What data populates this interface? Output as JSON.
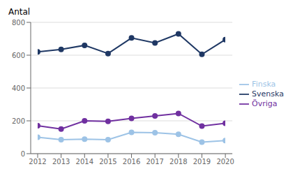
{
  "chart_data": {
    "type": "line",
    "title": "Antal",
    "x": [
      2012,
      2013,
      2014,
      2015,
      2016,
      2017,
      2018,
      2019,
      2020
    ],
    "xlim": [
      2012,
      2020
    ],
    "xticks": [
      2012,
      2013,
      2014,
      2015,
      2016,
      2017,
      2018,
      2019,
      2020
    ],
    "ylim": [
      0,
      800
    ],
    "yticks": [
      0,
      200,
      400,
      600,
      800
    ],
    "grid": "y",
    "legend": "right",
    "marker": "circle",
    "series": [
      {
        "name": "Svenska",
        "color": "#1f3864",
        "values": [
          620,
          635,
          660,
          610,
          705,
          675,
          730,
          605,
          695
        ]
      },
      {
        "name": "Övriga",
        "color": "#7030a0",
        "values": [
          170,
          150,
          200,
          197,
          215,
          230,
          245,
          168,
          185
        ]
      },
      {
        "name": "Finska",
        "color": "#9dc3e6",
        "values": [
          100,
          85,
          88,
          85,
          130,
          128,
          118,
          70,
          80
        ]
      }
    ]
  }
}
